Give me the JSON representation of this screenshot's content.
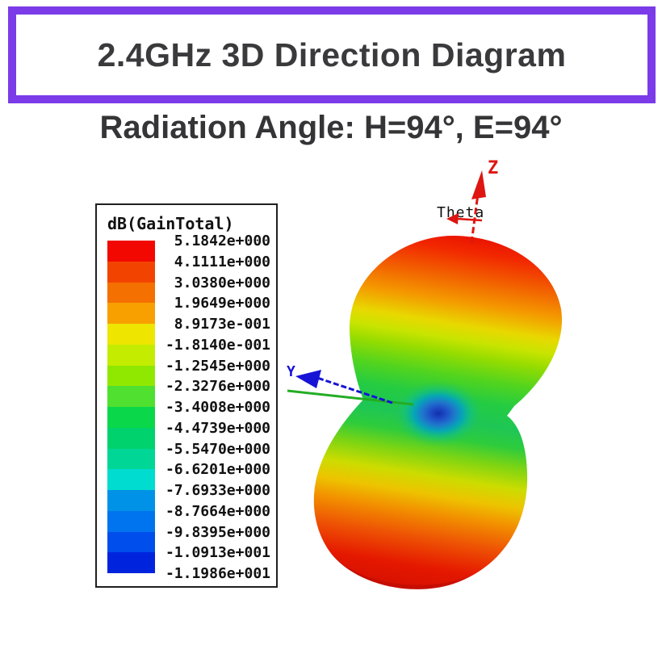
{
  "page": {
    "background": "#FFFFFF"
  },
  "title": {
    "text": "2.4GHz 3D Direction Diagram"
  },
  "subtitle": {
    "text": "Radiation Angle: H=94°, E=94°"
  },
  "colors": {
    "accent_border": "#7B3BE8",
    "heading_text": "#3A3A3C",
    "legend_border": "#1F1F1F",
    "z_axis": "#DE1510",
    "y_axis": "#1713D6",
    "x_axis_line": "#23AD23",
    "null_core": "#1230A8"
  },
  "chart_data": {
    "type": "3d-radiation-pattern",
    "quantity": "dB(GainTotal)",
    "legend": {
      "label": "dB(GainTotal)",
      "tick_labels": [
        "5.1842e+000",
        "4.1111e+000",
        "3.0380e+000",
        "1.9649e+000",
        "8.9173e-001",
        "-1.8140e-001",
        "-1.2545e+000",
        "-2.3276e+000",
        "-3.4008e+000",
        "-4.4739e+000",
        "-5.5470e+000",
        "-6.6201e+000",
        "-7.6933e+000",
        "-8.7664e+000",
        "-9.8395e+000",
        "-1.0913e+001",
        "-1.1986e+001"
      ],
      "tick_values_db": [
        5.1842,
        4.1111,
        3.038,
        1.9649,
        0.89173,
        -0.1814,
        -1.2545,
        -2.3276,
        -3.4008,
        -4.4739,
        -5.547,
        -6.6201,
        -7.6933,
        -8.7664,
        -9.8395,
        -10.913,
        -11.986
      ],
      "band_colors": [
        "#F20800",
        "#F24400",
        "#F47000",
        "#F8A000",
        "#EEE600",
        "#C4EC00",
        "#90E800",
        "#4FE030",
        "#0AD84A",
        "#00D26E",
        "#00D696",
        "#00DCD0",
        "#0092E6",
        "#0074EE",
        "#004EEC",
        "#0024DE"
      ]
    },
    "axes": {
      "z_label": "Z",
      "theta_label": "Theta",
      "y_label": "Y"
    },
    "radiation_angles": {
      "h_deg": 94,
      "e_deg": 94
    },
    "gain_max_db": 5.1842,
    "gain_min_db": -11.986,
    "legend_step_db": 1.0731
  }
}
